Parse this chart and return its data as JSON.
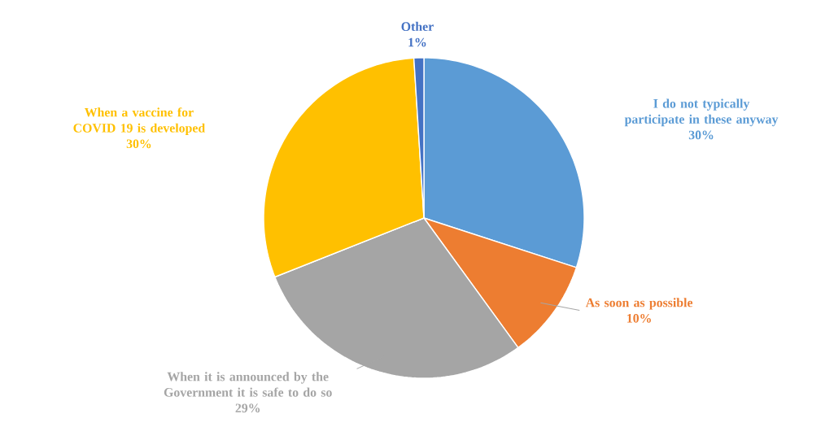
{
  "chart_data": {
    "type": "pie",
    "categories": [
      "I do not typically participate in these anyway",
      "As soon as possible",
      "When it is announced by the Government it is safe to do so",
      "When a vaccine for COVID 19 is developed",
      "Other"
    ],
    "values": [
      30,
      10,
      29,
      30,
      1
    ],
    "value_labels": [
      "30%",
      "10%",
      "29%",
      "30%",
      "1%"
    ],
    "colors": [
      "#5b9bd5",
      "#ed7d31",
      "#a5a5a5",
      "#ffc000",
      "#4472c4"
    ]
  }
}
